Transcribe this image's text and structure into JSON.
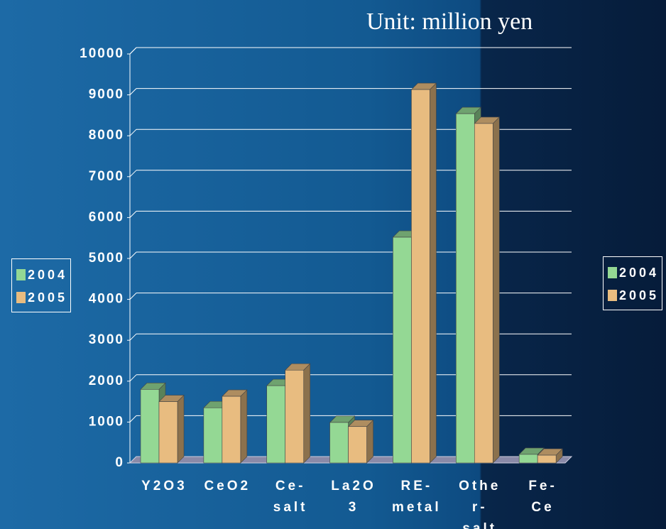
{
  "chart_data": {
    "type": "bar3d",
    "title": "Unit: million yen",
    "categories": [
      "Y2O3",
      "CeO2",
      "Ce-salt",
      "La2O3",
      "RE-metal",
      "Other-salt",
      "Fe-Ce"
    ],
    "series": [
      {
        "name": "2004",
        "color": "#94d894",
        "values": [
          1800,
          1350,
          1890,
          990,
          5520,
          8540,
          210
        ]
      },
      {
        "name": "2005",
        "color": "#e8bc80",
        "values": [
          1500,
          1630,
          2270,
          890,
          9130,
          8300,
          190
        ]
      }
    ],
    "ylim": [
      0,
      10000
    ],
    "yticks": [
      0,
      1000,
      2000,
      3000,
      4000,
      5000,
      6000,
      7000,
      8000,
      9000,
      10000
    ],
    "grid": true
  }
}
